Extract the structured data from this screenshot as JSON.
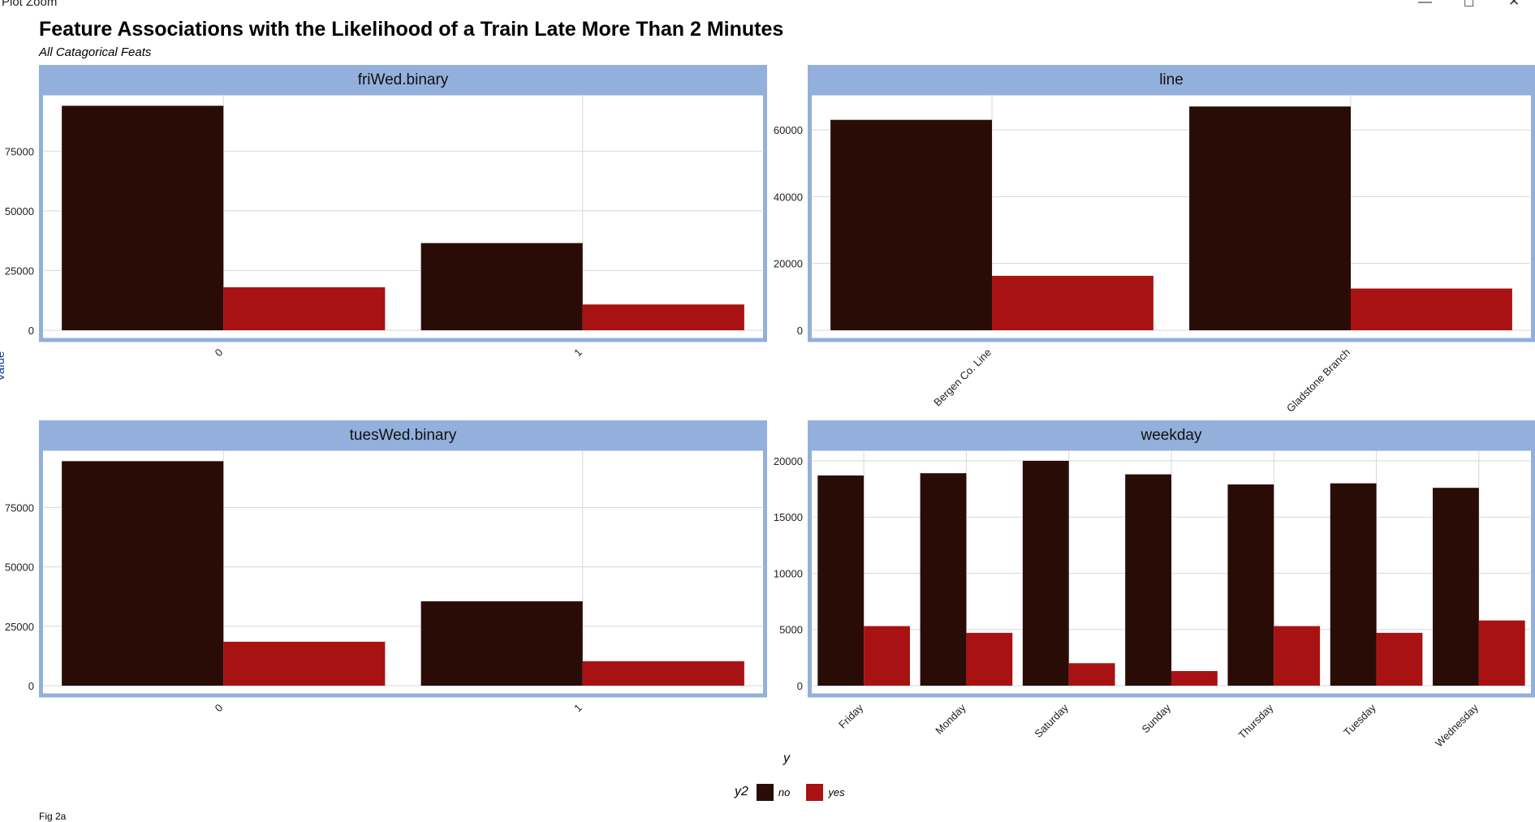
{
  "window": {
    "title": "Plot Zoom",
    "controls": [
      "minimize",
      "maximize",
      "close"
    ]
  },
  "title": "Feature Associations with the Likelihood of a Train Late More Than 2 Minutes",
  "subtitle": "All Catagorical Feats",
  "y_axis_title": "Value",
  "x_axis_title": "y",
  "footer": "Fig 2a",
  "legend": {
    "title": "y2",
    "items": [
      {
        "label": "no",
        "color": "#2a0c06"
      },
      {
        "label": "yes",
        "color": "#a91212"
      }
    ]
  },
  "colors": {
    "strip": "#93b0dc",
    "border": "#93b0dc",
    "grid": "#d7d7d7",
    "no": "#2a0c06",
    "yes": "#a91212"
  },
  "chart_data": [
    {
      "type": "bar",
      "panel": "friWed.binary",
      "categories": [
        "0",
        "1"
      ],
      "series": [
        {
          "name": "no",
          "values": [
            94000,
            36500
          ]
        },
        {
          "name": "yes",
          "values": [
            18000,
            10800
          ]
        }
      ],
      "yticks": [
        0,
        25000,
        50000,
        75000
      ],
      "ylim": [
        0,
        96500
      ]
    },
    {
      "type": "bar",
      "panel": "line",
      "categories": [
        "Bergen Co. Line",
        "Gladstone Branch"
      ],
      "series": [
        {
          "name": "no",
          "values": [
            63000,
            67000
          ]
        },
        {
          "name": "yes",
          "values": [
            16300,
            12500
          ]
        }
      ],
      "yticks": [
        0,
        20000,
        40000,
        60000
      ],
      "ylim": [
        0,
        69000
      ]
    },
    {
      "type": "bar",
      "panel": "tuesWed.binary",
      "categories": [
        "0",
        "1"
      ],
      "series": [
        {
          "name": "no",
          "values": [
            94500,
            35500
          ]
        },
        {
          "name": "yes",
          "values": [
            18500,
            10300
          ]
        }
      ],
      "yticks": [
        0,
        25000,
        50000,
        75000
      ],
      "ylim": [
        0,
        97000
      ]
    },
    {
      "type": "bar",
      "panel": "weekday",
      "categories": [
        "Friday",
        "Monday",
        "Saturday",
        "Sunday",
        "Thursday",
        "Tuesday",
        "Wednesday"
      ],
      "series": [
        {
          "name": "no",
          "values": [
            18700,
            18900,
            20000,
            18800,
            17900,
            18000,
            17600
          ]
        },
        {
          "name": "yes",
          "values": [
            5300,
            4700,
            2000,
            1300,
            5300,
            4700,
            5800
          ]
        }
      ],
      "yticks": [
        0,
        5000,
        10000,
        15000,
        20000
      ],
      "ylim": [
        0,
        20500
      ]
    }
  ]
}
